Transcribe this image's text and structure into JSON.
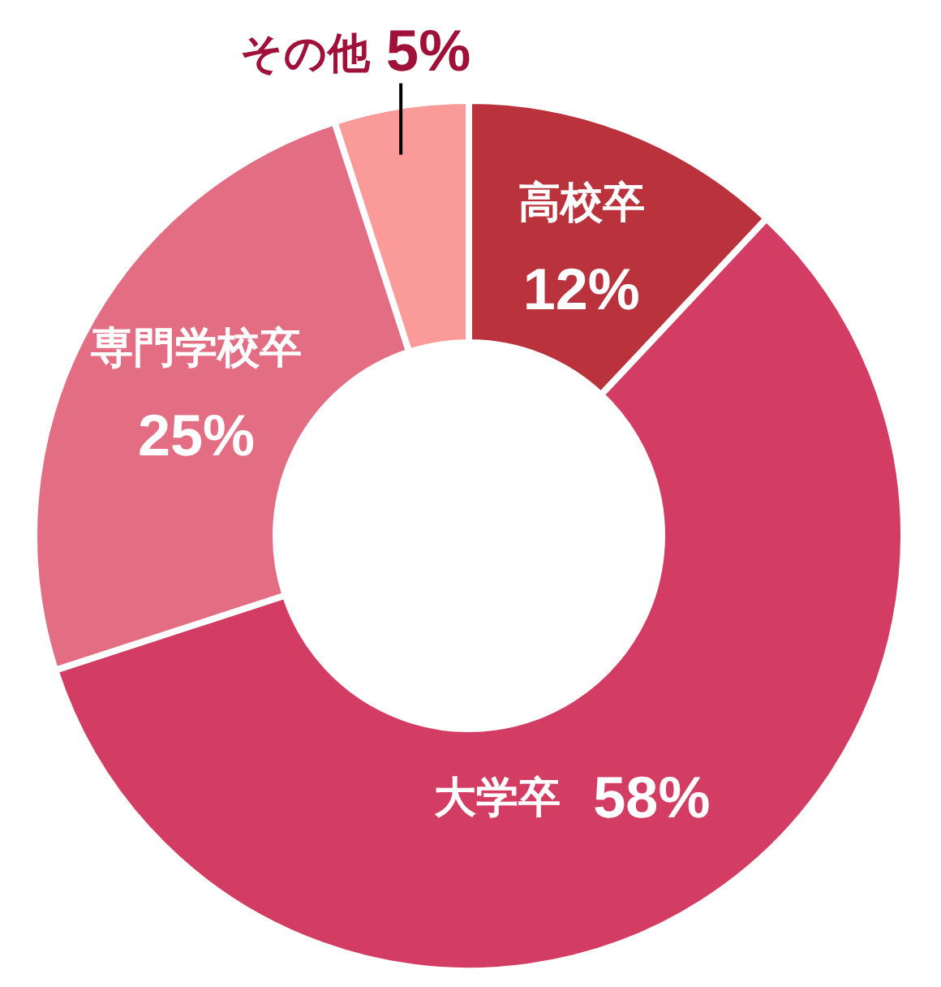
{
  "chart_data": {
    "type": "donut",
    "categories": [
      "高校卒",
      "大学卒",
      "専門学校卒",
      "その他"
    ],
    "values": [
      12,
      58,
      25,
      5
    ],
    "colors": [
      "#b9323c",
      "#d33c63",
      "#e36d83",
      "#fa9a99"
    ],
    "value_labels": [
      "12%",
      "58%",
      "25%",
      "5%"
    ],
    "legend": false
  }
}
